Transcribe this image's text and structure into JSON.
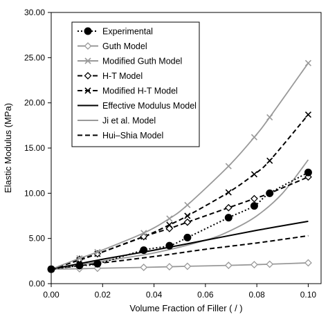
{
  "chart_data": {
    "type": "line",
    "xlabel": "Volume Fraction of Filler ( / )",
    "ylabel": "Elastic Modulus (MPa)",
    "xlim": [
      0,
      0.105
    ],
    "ylim": [
      0,
      30
    ],
    "x_ticks": [
      "0.00",
      "0.02",
      "0.04",
      "0.06",
      "0.08",
      "0.10"
    ],
    "y_ticks": [
      "0.00",
      "5.00",
      "10.00",
      "15.00",
      "20.00",
      "25.00",
      "30.00"
    ],
    "grid": false,
    "legend_position": "top-left",
    "series": [
      {
        "name": "Experimental",
        "color": "#000000",
        "dash": "dotted",
        "marker": "filled-circle",
        "x": [
          0.0,
          0.011,
          0.018,
          0.036,
          0.046,
          0.053,
          0.069,
          0.079,
          0.085,
          0.1
        ],
        "y": [
          1.6,
          2.0,
          2.2,
          3.7,
          4.2,
          5.1,
          7.3,
          8.6,
          10.0,
          12.3
        ]
      },
      {
        "name": "Guth Model",
        "color": "#999999",
        "dash": "solid",
        "marker": "open-diamond",
        "x": [
          0.0,
          0.011,
          0.018,
          0.036,
          0.046,
          0.053,
          0.069,
          0.079,
          0.085,
          0.1
        ],
        "y": [
          1.6,
          1.65,
          1.7,
          1.8,
          1.87,
          1.92,
          2.02,
          2.1,
          2.15,
          2.3
        ]
      },
      {
        "name": "Modified Guth Model",
        "color": "#999999",
        "dash": "solid",
        "marker": "x",
        "x": [
          0.0,
          0.011,
          0.018,
          0.036,
          0.046,
          0.053,
          0.069,
          0.079,
          0.085,
          0.1
        ],
        "y": [
          1.6,
          2.8,
          3.5,
          5.6,
          7.2,
          8.7,
          13.0,
          16.2,
          18.4,
          24.4
        ]
      },
      {
        "name": "H-T Model",
        "color": "#000000",
        "dash": "dashed",
        "marker": "open-diamond",
        "x": [
          0.0,
          0.011,
          0.018,
          0.036,
          0.046,
          0.053,
          0.069,
          0.079,
          0.085,
          0.1
        ],
        "y": [
          1.6,
          2.7,
          3.3,
          5.2,
          6.1,
          6.8,
          8.4,
          9.4,
          10.0,
          11.8
        ]
      },
      {
        "name": "Modified H-T Model",
        "color": "#000000",
        "dash": "dashed",
        "marker": "x",
        "x": [
          0.0,
          0.011,
          0.018,
          0.036,
          0.046,
          0.053,
          0.069,
          0.079,
          0.085,
          0.1
        ],
        "y": [
          1.6,
          2.6,
          3.3,
          5.2,
          6.5,
          7.5,
          10.1,
          12.1,
          13.6,
          18.7
        ]
      },
      {
        "name": "Effective Modulus Model",
        "color": "#000000",
        "dash": "solid",
        "marker": "none",
        "x": [
          0.0,
          0.02,
          0.04,
          0.06,
          0.08,
          0.1
        ],
        "y": [
          1.6,
          2.7,
          3.7,
          4.8,
          5.9,
          6.9
        ]
      },
      {
        "name": "Ji et al. Model",
        "color": "#999999",
        "dash": "solid",
        "marker": "none",
        "x": [
          0.0,
          0.02,
          0.04,
          0.06,
          0.07,
          0.08,
          0.09,
          0.1
        ],
        "y": [
          1.6,
          2.5,
          3.4,
          4.8,
          5.9,
          7.5,
          10.0,
          13.7
        ]
      },
      {
        "name": "Hui–Shia Model",
        "color": "#000000",
        "dash": "dashed",
        "marker": "none",
        "x": [
          0.0,
          0.02,
          0.04,
          0.06,
          0.08,
          0.1
        ],
        "y": [
          1.6,
          2.3,
          3.0,
          3.8,
          4.5,
          5.3
        ]
      }
    ]
  }
}
